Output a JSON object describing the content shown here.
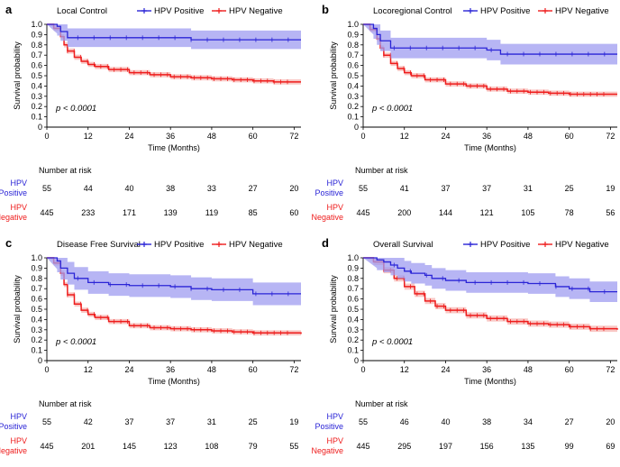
{
  "figure": {
    "ylabel": "Survival probability",
    "xlabel": "Time (Months)",
    "xticks": [
      "0",
      "12",
      "24",
      "36",
      "48",
      "60",
      "72"
    ],
    "yticks": [
      "0",
      "0.1",
      "0.2",
      "0.3",
      "0.4",
      "0.5",
      "0.6",
      "0.7",
      "0.8",
      "0.9",
      "1.0"
    ],
    "risk_title": "Number at risk",
    "hpv_pos_label": [
      "HPV",
      "Positive"
    ],
    "hpv_neg_label": [
      "HPV",
      "Negative"
    ],
    "legend_pos": "HPV Positive",
    "legend_neg": "HPV Negative",
    "colors": {
      "positive": "#2a24d6",
      "negative": "#ee1c1c",
      "positive_band": "#9f9cf0",
      "negative_band": "#f6b0ac"
    }
  },
  "chart_data": [
    {
      "type": "line",
      "panel_label": "a",
      "title": "Local Control",
      "pvalue": "p < 0.0001",
      "xlim": [
        0,
        74
      ],
      "ylim": [
        0,
        1
      ],
      "series": [
        {
          "name": "HPV Positive",
          "x": [
            0,
            3,
            4,
            6,
            8,
            12,
            42,
            74
          ],
          "y": [
            1.0,
            0.98,
            0.93,
            0.87,
            0.87,
            0.87,
            0.85,
            0.85
          ],
          "band": 0.09,
          "risk": [
            "55",
            "44",
            "40",
            "38",
            "33",
            "27",
            "20"
          ]
        },
        {
          "name": "HPV Negative",
          "x": [
            0,
            2,
            4,
            5,
            6,
            8,
            10,
            12,
            14,
            18,
            24,
            30,
            36,
            42,
            48,
            54,
            60,
            66,
            74
          ],
          "y": [
            1.0,
            0.96,
            0.88,
            0.8,
            0.74,
            0.68,
            0.64,
            0.61,
            0.59,
            0.56,
            0.53,
            0.51,
            0.49,
            0.48,
            0.47,
            0.46,
            0.45,
            0.44,
            0.44
          ],
          "band": 0.025,
          "risk": [
            "445",
            "233",
            "171",
            "139",
            "119",
            "85",
            "60"
          ]
        }
      ]
    },
    {
      "type": "line",
      "panel_label": "b",
      "title": "Locoregional Control",
      "pvalue": "p < 0.0001",
      "xlim": [
        0,
        74
      ],
      "ylim": [
        0,
        1
      ],
      "series": [
        {
          "name": "HPV Positive",
          "x": [
            0,
            3,
            4,
            5,
            8,
            12,
            36,
            40,
            74
          ],
          "y": [
            1.0,
            0.96,
            0.9,
            0.84,
            0.77,
            0.77,
            0.75,
            0.71,
            0.71
          ],
          "band": 0.1,
          "risk": [
            "55",
            "41",
            "37",
            "37",
            "31",
            "25",
            "19"
          ]
        },
        {
          "name": "HPV Negative",
          "x": [
            0,
            2,
            4,
            5,
            6,
            8,
            10,
            12,
            14,
            18,
            24,
            30,
            36,
            42,
            48,
            54,
            60,
            66,
            74
          ],
          "y": [
            1.0,
            0.95,
            0.86,
            0.77,
            0.7,
            0.62,
            0.57,
            0.53,
            0.5,
            0.46,
            0.42,
            0.4,
            0.37,
            0.35,
            0.34,
            0.33,
            0.32,
            0.32,
            0.32
          ],
          "band": 0.025,
          "risk": [
            "445",
            "200",
            "144",
            "121",
            "105",
            "78",
            "56"
          ]
        }
      ]
    },
    {
      "type": "line",
      "panel_label": "c",
      "title": "Disease Free Survival",
      "pvalue": "p < 0.0001",
      "xlim": [
        0,
        74
      ],
      "ylim": [
        0,
        1
      ],
      "series": [
        {
          "name": "HPV Positive",
          "x": [
            0,
            3,
            4,
            6,
            8,
            12,
            18,
            24,
            36,
            42,
            48,
            60,
            74
          ],
          "y": [
            1.0,
            0.97,
            0.9,
            0.85,
            0.8,
            0.76,
            0.74,
            0.73,
            0.72,
            0.7,
            0.69,
            0.65,
            0.65
          ],
          "band": 0.11,
          "risk": [
            "55",
            "42",
            "37",
            "37",
            "31",
            "25",
            "19"
          ]
        },
        {
          "name": "HPV Negative",
          "x": [
            0,
            2,
            4,
            5,
            6,
            8,
            10,
            12,
            14,
            18,
            24,
            30,
            36,
            42,
            48,
            54,
            60,
            66,
            74
          ],
          "y": [
            1.0,
            0.95,
            0.85,
            0.74,
            0.64,
            0.55,
            0.49,
            0.45,
            0.42,
            0.38,
            0.34,
            0.32,
            0.31,
            0.3,
            0.29,
            0.28,
            0.27,
            0.27,
            0.26
          ],
          "band": 0.025,
          "risk": [
            "445",
            "201",
            "145",
            "123",
            "108",
            "79",
            "55"
          ]
        }
      ]
    },
    {
      "type": "line",
      "panel_label": "d",
      "title": "Overall Survival",
      "pvalue": "p < 0.0001",
      "xlim": [
        0,
        74
      ],
      "ylim": [
        0,
        1
      ],
      "series": [
        {
          "name": "HPV Positive",
          "x": [
            0,
            4,
            6,
            8,
            10,
            12,
            14,
            18,
            20,
            24,
            30,
            36,
            48,
            56,
            60,
            66,
            74
          ],
          "y": [
            1.0,
            0.98,
            0.96,
            0.93,
            0.9,
            0.87,
            0.85,
            0.83,
            0.8,
            0.78,
            0.76,
            0.76,
            0.75,
            0.72,
            0.7,
            0.67,
            0.67
          ],
          "band": 0.1,
          "risk": [
            "55",
            "46",
            "40",
            "38",
            "34",
            "27",
            "20"
          ]
        },
        {
          "name": "HPV Negative",
          "x": [
            0,
            3,
            6,
            9,
            12,
            15,
            18,
            21,
            24,
            30,
            36,
            42,
            48,
            54,
            60,
            66,
            74
          ],
          "y": [
            1.0,
            0.96,
            0.88,
            0.8,
            0.72,
            0.65,
            0.58,
            0.53,
            0.49,
            0.44,
            0.41,
            0.38,
            0.36,
            0.35,
            0.33,
            0.31,
            0.3
          ],
          "band": 0.03,
          "risk": [
            "445",
            "295",
            "197",
            "156",
            "135",
            "99",
            "69"
          ]
        }
      ]
    }
  ]
}
